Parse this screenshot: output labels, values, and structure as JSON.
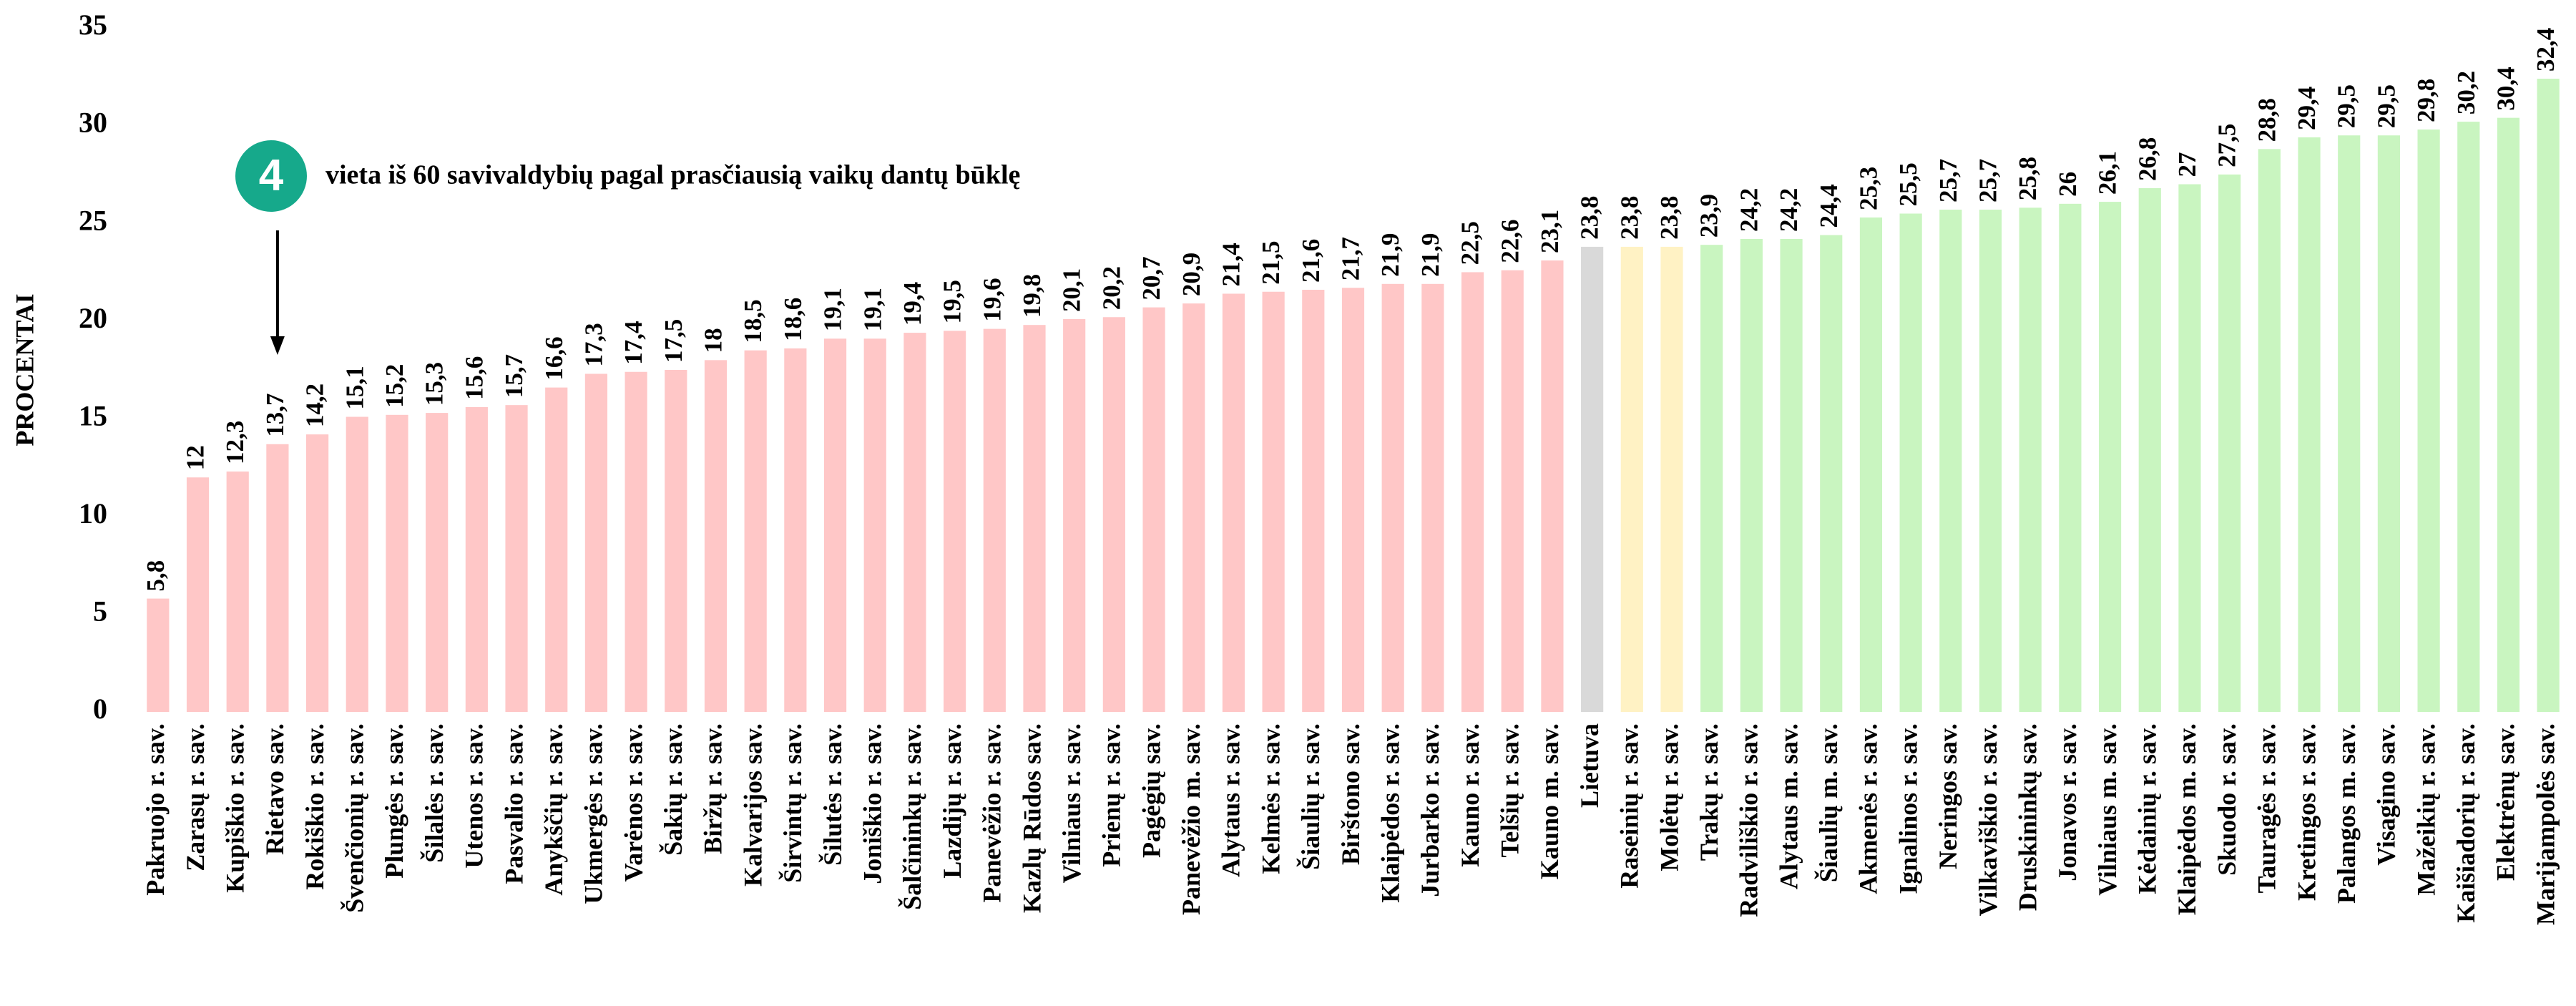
{
  "chart_data": {
    "type": "bar",
    "y_label": "PROCENTAI",
    "annotation": {
      "badge": "4",
      "text": "vieta iš 60 savivaldybių pagal prasčiausią vaikų dantų būklę"
    },
    "categories": [
      "Pakruojo r. sav.",
      "Zarasų r. sav.",
      "Kupiškio r. sav.",
      "Rietavo sav.",
      "Rokiškio r. sav.",
      "Švenčionių r. sav.",
      "Plungės r. sav.",
      "Šilalės r. sav.",
      "Utenos r. sav.",
      "Pasvalio r. sav.",
      "Anykščių r. sav.",
      "Ukmergės r. sav.",
      "Varėnos r. sav.",
      "Šakių r. sav.",
      "Biržų r. sav.",
      "Kalvarijos sav.",
      "Širvintų r. sav.",
      "Šilutės r. sav.",
      "Joniškio r. sav.",
      "Šalčininkų r. sav.",
      "Lazdijų r. sav.",
      "Panevėžio r. sav.",
      "Kazlų Rūdos sav.",
      "Vilniaus r. sav.",
      "Prienų r. sav.",
      "Pagėgių sav.",
      "Panevėžio m. sav.",
      "Alytaus r. sav.",
      "Kelmės r. sav.",
      "Šiaulių r. sav.",
      "Birštono sav.",
      "Klaipėdos r. sav.",
      "Jurbarko r. sav.",
      "Kauno r. sav.",
      "Telšių r. sav.",
      "Kauno m. sav.",
      "Lietuva",
      "Raseinių r. sav.",
      "Molėtų r. sav.",
      "Trakų r. sav.",
      "Radviliškio r. sav.",
      "Alytaus m. sav.",
      "Šiaulių m. sav.",
      "Akmenės r. sav.",
      "Ignalinos r. sav.",
      "Neringos sav.",
      "Vilkaviškio r. sav.",
      "Druskininkų sav.",
      "Jonavos r. sav.",
      "Vilniaus m. sav.",
      "Kėdainių r. sav.",
      "Klaipėdos m. sav.",
      "Skuodo r. sav.",
      "Tauragės r. sav.",
      "Kretingos r. sav.",
      "Palangos m. sav.",
      "Visagino sav.",
      "Mažeikių r. sav.",
      "Kaišiadorių r. sav.",
      "Elektrėnų sav.",
      "Marijampolės sav."
    ],
    "values": [
      5.8,
      12,
      12.3,
      13.7,
      14.2,
      15.1,
      15.2,
      15.3,
      15.6,
      15.7,
      16.6,
      17.3,
      17.4,
      17.5,
      18,
      18.5,
      18.6,
      19.1,
      19.1,
      19.4,
      19.5,
      19.6,
      19.8,
      20.1,
      20.2,
      20.7,
      20.9,
      21.4,
      21.5,
      21.6,
      21.7,
      21.9,
      21.9,
      22.5,
      22.6,
      23.1,
      23.8,
      23.8,
      23.8,
      23.9,
      24.2,
      24.2,
      24.4,
      25.3,
      25.5,
      25.7,
      25.7,
      25.8,
      26,
      26.1,
      26.8,
      27,
      27.5,
      28.8,
      29.4,
      29.5,
      29.5,
      29.8,
      30.2,
      30.4,
      32.4
    ],
    "value_labels": [
      "5,8",
      "12",
      "12,3",
      "13,7",
      "14,2",
      "15,1",
      "15,2",
      "15,3",
      "15,6",
      "15,7",
      "16,6",
      "17,3",
      "17,4",
      "17,5",
      "18",
      "18,5",
      "18,6",
      "19,1",
      "19,1",
      "19,4",
      "19,5",
      "19,6",
      "19,8",
      "20,1",
      "20,2",
      "20,7",
      "20,9",
      "21,4",
      "21,5",
      "21,6",
      "21,7",
      "21,9",
      "21,9",
      "22,5",
      "22,6",
      "23,1",
      "23,8",
      "23,8",
      "23,8",
      "23,9",
      "24,2",
      "24,2",
      "24,4",
      "25,3",
      "25,5",
      "25,7",
      "25,7",
      "25,8",
      "26",
      "26,1",
      "26,8",
      "27",
      "27,5",
      "28,8",
      "29,4",
      "29,5",
      "29,5",
      "29,8",
      "30,2",
      "30,4",
      "32,4"
    ],
    "colors": [
      "#ffc7c7",
      "#ffc7c7",
      "#ffc7c7",
      "#ffc7c7",
      "#ffc7c7",
      "#ffc7c7",
      "#ffc7c7",
      "#ffc7c7",
      "#ffc7c7",
      "#ffc7c7",
      "#ffc7c7",
      "#ffc7c7",
      "#ffc7c7",
      "#ffc7c7",
      "#ffc7c7",
      "#ffc7c7",
      "#ffc7c7",
      "#ffc7c7",
      "#ffc7c7",
      "#ffc7c7",
      "#ffc7c7",
      "#ffc7c7",
      "#ffc7c7",
      "#ffc7c7",
      "#ffc7c7",
      "#ffc7c7",
      "#ffc7c7",
      "#ffc7c7",
      "#ffc7c7",
      "#ffc7c7",
      "#ffc7c7",
      "#ffc7c7",
      "#ffc7c7",
      "#ffc7c7",
      "#ffc7c7",
      "#ffc7c7",
      "#d9d9d9",
      "#fff2c4",
      "#fff2c4",
      "#c9f5c0",
      "#c9f5c0",
      "#c9f5c0",
      "#c9f5c0",
      "#c9f5c0",
      "#c9f5c0",
      "#c9f5c0",
      "#c9f5c0",
      "#c9f5c0",
      "#c9f5c0",
      "#c9f5c0",
      "#c9f5c0",
      "#c9f5c0",
      "#c9f5c0",
      "#c9f5c0",
      "#c9f5c0",
      "#c9f5c0",
      "#c9f5c0",
      "#c9f5c0",
      "#c9f5c0",
      "#c9f5c0",
      "#c9f5c0"
    ],
    "ylim": [
      0,
      35
    ],
    "yticks": [
      0,
      5,
      10,
      15,
      20,
      25,
      30,
      35
    ],
    "grid": false
  }
}
